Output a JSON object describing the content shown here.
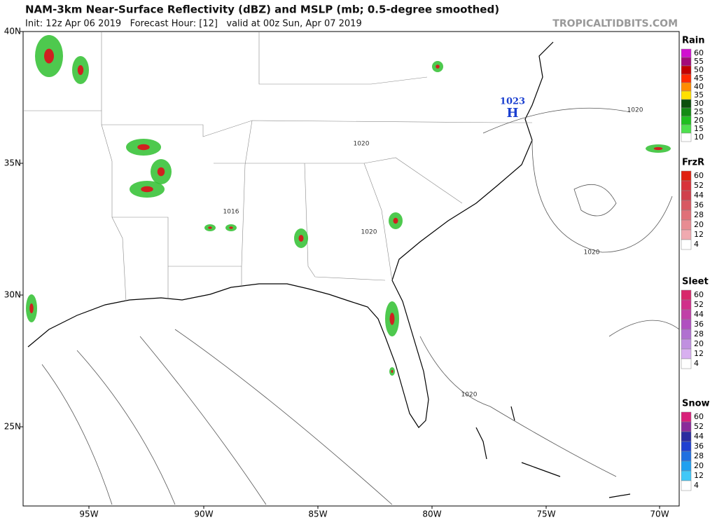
{
  "header": {
    "title": "NAM-3km Near-Surface Reflectivity (dBZ) and MSLP (mb; 0.5-degree smoothed)",
    "subtitle": "Init: 12z Apr 06 2019   Forecast Hour: [12]   valid at 00z Sun, Apr 07 2019",
    "watermark": "TROPICALTIDBITS.COM"
  },
  "map": {
    "lat_labels": [
      "40N",
      "35N",
      "30N",
      "25N"
    ],
    "lon_labels": [
      "95W",
      "90W",
      "85W",
      "80W",
      "75W",
      "70W"
    ],
    "isobar_labels": [
      "1020",
      "1020",
      "1016",
      "1020",
      "1020",
      "1020"
    ],
    "high": {
      "pressure": "1023",
      "symbol": "H"
    }
  },
  "legend": [
    {
      "title": "Rain",
      "items": [
        {
          "label": "60",
          "color": "#d10fd1"
        },
        {
          "label": "55",
          "color": "#a30b79"
        },
        {
          "label": "50",
          "color": "#c30000"
        },
        {
          "label": "45",
          "color": "#ff2a00"
        },
        {
          "label": "40",
          "color": "#ff8c00"
        },
        {
          "label": "35",
          "color": "#ffe000"
        },
        {
          "label": "30",
          "color": "#0c4f0c"
        },
        {
          "label": "25",
          "color": "#138a13"
        },
        {
          "label": "20",
          "color": "#1fbf1f"
        },
        {
          "label": "15",
          "color": "#4ee04e"
        },
        {
          "label": "10",
          "color": "#ffffff"
        }
      ]
    },
    {
      "title": "FrzR",
      "items": [
        {
          "label": "60",
          "color": "#e0200f"
        },
        {
          "label": "52",
          "color": "#d8323a"
        },
        {
          "label": "44",
          "color": "#d0404c"
        },
        {
          "label": "36",
          "color": "#d85862"
        },
        {
          "label": "28",
          "color": "#e07078"
        },
        {
          "label": "20",
          "color": "#e88c92"
        },
        {
          "label": "12",
          "color": "#f0aab0"
        },
        {
          "label": "4",
          "color": "#ffffff"
        }
      ]
    },
    {
      "title": "Sleet",
      "items": [
        {
          "label": "60",
          "color": "#d8286a"
        },
        {
          "label": "52",
          "color": "#d0308a"
        },
        {
          "label": "44",
          "color": "#c040a8"
        },
        {
          "label": "36",
          "color": "#b050c0"
        },
        {
          "label": "28",
          "color": "#b070d0"
        },
        {
          "label": "20",
          "color": "#c090e0"
        },
        {
          "label": "12",
          "color": "#d8b0f0"
        },
        {
          "label": "4",
          "color": "#ffffff"
        }
      ]
    },
    {
      "title": "Snow",
      "items": [
        {
          "label": "60",
          "color": "#d8207a"
        },
        {
          "label": "52",
          "color": "#8a2c9a"
        },
        {
          "label": "44",
          "color": "#2c2ca0"
        },
        {
          "label": "36",
          "color": "#2040d0"
        },
        {
          "label": "28",
          "color": "#2070e0"
        },
        {
          "label": "20",
          "color": "#20a0f0"
        },
        {
          "label": "12",
          "color": "#40c8f8"
        },
        {
          "label": "4",
          "color": "#ffffff"
        }
      ]
    }
  ]
}
